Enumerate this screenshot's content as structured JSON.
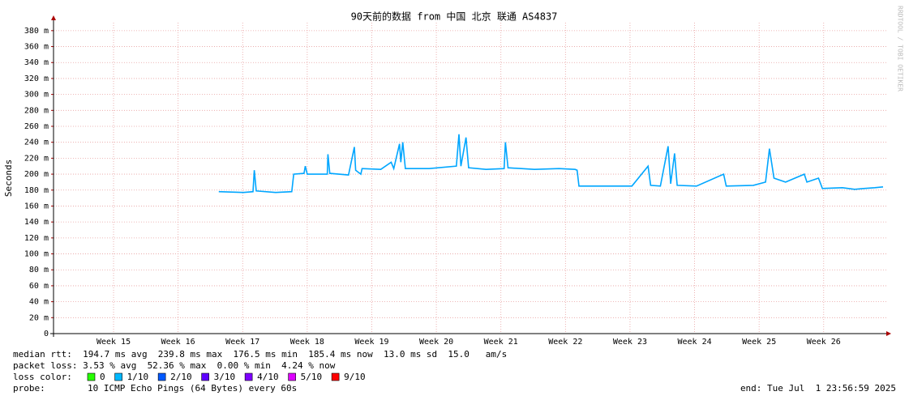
{
  "chart_data": {
    "type": "line",
    "title": "90天前的数据 from 中国 北京 联通 AS4837",
    "ylabel": "Seconds",
    "watermark": "RRDTOOL / TOBI OETIKER",
    "xlim": [
      14.07,
      26.97
    ],
    "xticks": [
      {
        "value": 15,
        "label": "Week 15"
      },
      {
        "value": 16,
        "label": "Week 16"
      },
      {
        "value": 17,
        "label": "Week 17"
      },
      {
        "value": 18,
        "label": "Week 18"
      },
      {
        "value": 19,
        "label": "Week 19"
      },
      {
        "value": 20,
        "label": "Week 20"
      },
      {
        "value": 21,
        "label": "Week 21"
      },
      {
        "value": 22,
        "label": "Week 22"
      },
      {
        "value": 23,
        "label": "Week 23"
      },
      {
        "value": 24,
        "label": "Week 24"
      },
      {
        "value": 25,
        "label": "Week 25"
      },
      {
        "value": 26,
        "label": "Week 26"
      }
    ],
    "ylim": [
      0,
      0.39
    ],
    "yticks": [
      0,
      {
        "value": 0.02,
        "label": "20 m"
      },
      {
        "value": 0.04,
        "label": "40 m"
      },
      {
        "value": 0.06,
        "label": "60 m"
      },
      {
        "value": 0.08,
        "label": "80 m"
      },
      {
        "value": 0.1,
        "label": "100 m"
      },
      {
        "value": 0.12,
        "label": "120 m"
      },
      {
        "value": 0.14,
        "label": "140 m"
      },
      {
        "value": 0.16,
        "label": "160 m"
      },
      {
        "value": 0.18,
        "label": "180 m"
      },
      {
        "value": 0.2,
        "label": "200 m"
      },
      {
        "value": 0.22,
        "label": "220 m"
      },
      {
        "value": 0.24,
        "label": "240 m"
      },
      {
        "value": 0.26,
        "label": "260 m"
      },
      {
        "value": 0.28,
        "label": "280 m"
      },
      {
        "value": 0.3,
        "label": "300 m"
      },
      {
        "value": 0.32,
        "label": "320 m"
      },
      {
        "value": 0.34,
        "label": "340 m"
      },
      {
        "value": 0.36,
        "label": "360 m"
      },
      {
        "value": 0.38,
        "label": "380 m"
      }
    ],
    "grid": true,
    "x": [
      16.63,
      17.01,
      17.16,
      17.18,
      17.21,
      17.51,
      17.76,
      17.79,
      17.95,
      17.97,
      18.0,
      18.31,
      18.32,
      18.35,
      18.64,
      18.73,
      18.75,
      18.83,
      18.85,
      19.14,
      19.3,
      19.34,
      19.43,
      19.45,
      19.48,
      19.52,
      19.89,
      20.31,
      20.35,
      20.38,
      20.46,
      20.5,
      20.77,
      21.05,
      21.07,
      21.11,
      21.52,
      21.9,
      22.15,
      22.18,
      22.21,
      22.78,
      23.03,
      23.28,
      23.32,
      23.47,
      23.59,
      23.63,
      23.69,
      23.73,
      24.03,
      24.45,
      24.49,
      24.91,
      25.1,
      25.16,
      25.23,
      25.41,
      25.7,
      25.74,
      25.92,
      25.98,
      26.29,
      26.48,
      26.62,
      26.79,
      26.92
    ],
    "series": [
      {
        "name": "median rtt",
        "color": "#00a6ff",
        "values": [
          0.178,
          0.177,
          0.178,
          0.205,
          0.179,
          0.177,
          0.178,
          0.2,
          0.201,
          0.21,
          0.2,
          0.2,
          0.225,
          0.201,
          0.199,
          0.234,
          0.205,
          0.2,
          0.207,
          0.206,
          0.215,
          0.207,
          0.238,
          0.215,
          0.24,
          0.207,
          0.207,
          0.21,
          0.25,
          0.21,
          0.246,
          0.208,
          0.206,
          0.207,
          0.24,
          0.208,
          0.206,
          0.207,
          0.206,
          0.205,
          0.185,
          0.185,
          0.185,
          0.21,
          0.186,
          0.185,
          0.235,
          0.188,
          0.226,
          0.186,
          0.185,
          0.2,
          0.185,
          0.186,
          0.19,
          0.232,
          0.195,
          0.19,
          0.2,
          0.19,
          0.195,
          0.182,
          0.183,
          0.181,
          0.182,
          0.183,
          0.184
        ]
      }
    ],
    "stats": [
      "median rtt:  194.7 ms avg  239.8 ms max  176.5 ms min  185.4 ms now  13.0 ms sd  15.0   am/s",
      "packet loss: 3.53 % avg  52.36 % max  0.00 % min  4.24 % now"
    ],
    "loss_legend": {
      "label": "loss color:",
      "items": [
        {
          "label": "0",
          "color": "#26ff00"
        },
        {
          "label": "1/10",
          "color": "#00b8ff"
        },
        {
          "label": "2/10",
          "color": "#0059ff"
        },
        {
          "label": "3/10",
          "color": "#5e00ff"
        },
        {
          "label": "4/10",
          "color": "#7e00ff"
        },
        {
          "label": "5/10",
          "color": "#dd00ff"
        },
        {
          "label": "9/10",
          "color": "#ff0000"
        }
      ]
    },
    "probe": {
      "label": "probe:",
      "text": "10 ICMP Echo Pings (64 Bytes) every 60s"
    },
    "end": "end: Tue Jul  1 23:56:59 2025"
  }
}
